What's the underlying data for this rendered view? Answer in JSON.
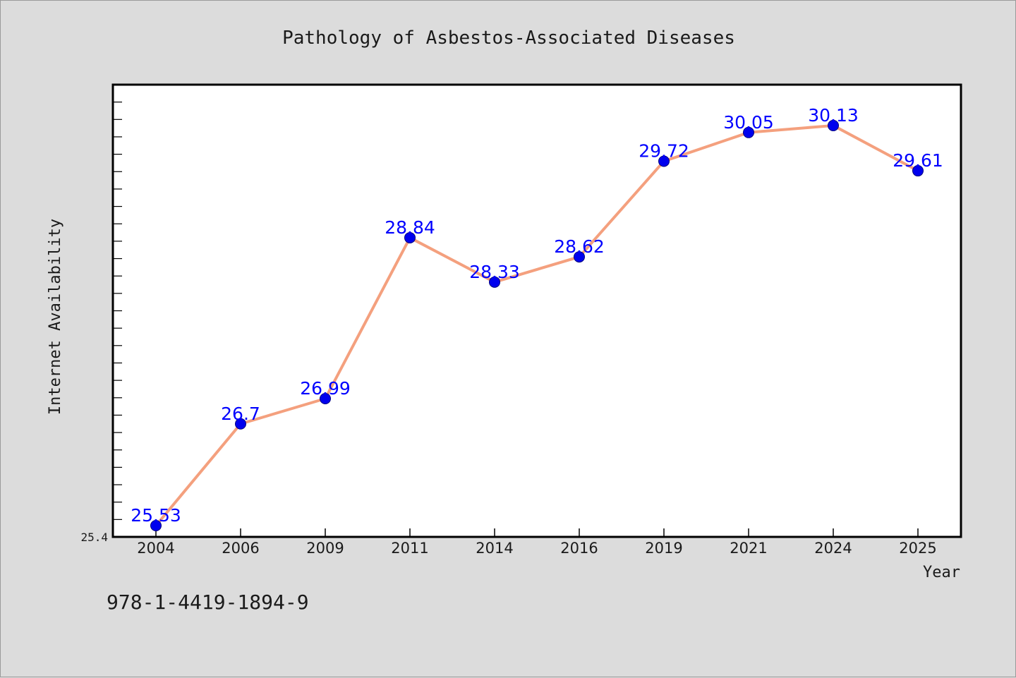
{
  "colors": {
    "background": "#dcdcdc",
    "plot_background": "#ffffff",
    "line": "#f4a07e",
    "marker": "#0000ee",
    "data_label": "#0000ff",
    "axis": "#000000"
  },
  "footer": {
    "isbn": "978-1-4419-1894-9"
  },
  "chart_data": {
    "type": "line",
    "title": "Pathology of Asbestos-Associated Diseases",
    "xlabel": "Year",
    "ylabel": "Internet Availability",
    "categories": [
      "2004",
      "2006",
      "2009",
      "2011",
      "2014",
      "2016",
      "2019",
      "2021",
      "2024",
      "2025"
    ],
    "series": [
      {
        "values": [
          25.53,
          26.7,
          26.99,
          28.84,
          28.33,
          28.62,
          29.72,
          30.05,
          30.13,
          29.61
        ]
      }
    ],
    "ylim": [
      25.4,
      30.6
    ],
    "y_tick_labels": [
      "25.4"
    ],
    "y_minor_tick_step": 0.2,
    "grid": false,
    "legend": "none",
    "data_labels": true
  }
}
